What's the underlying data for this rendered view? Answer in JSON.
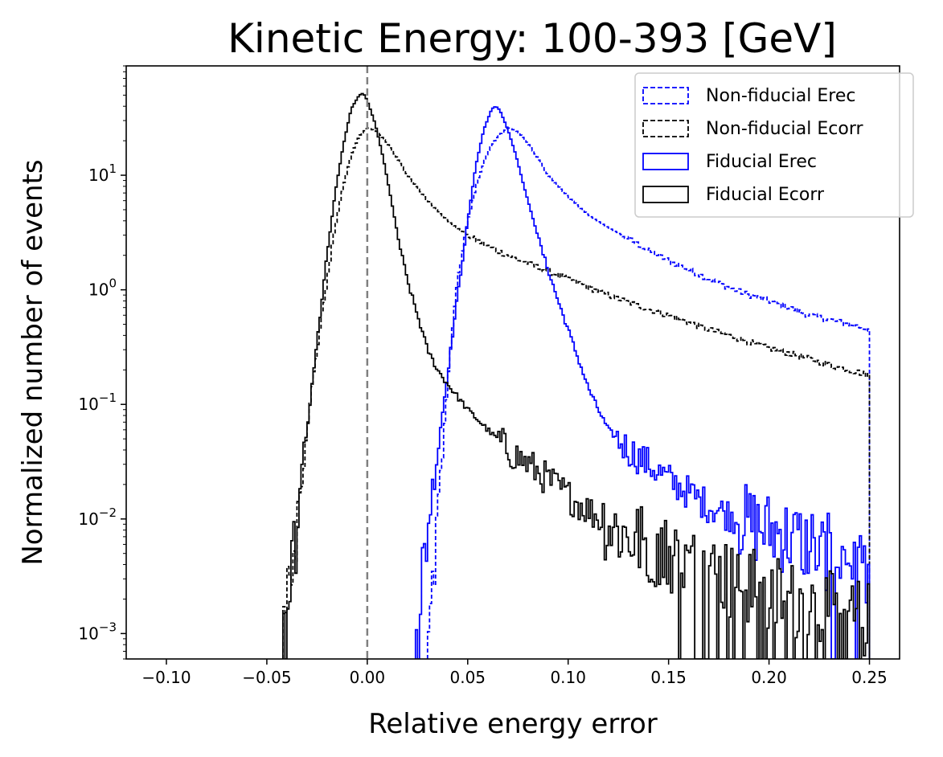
{
  "chart_data": {
    "type": "step-histogram",
    "title": "Kinetic Energy: 100-393 [GeV]",
    "xlabel": "Relative energy error",
    "ylabel": "Normalized number of events",
    "xlim": [
      -0.12,
      0.265
    ],
    "ylim": [
      0.0006,
      90
    ],
    "yscale": "log",
    "xticks": [
      -0.1,
      -0.05,
      0.0,
      0.05,
      0.1,
      0.15,
      0.2,
      0.25
    ],
    "xtick_labels": [
      "−0.10",
      "−0.05",
      "0.00",
      "0.05",
      "0.10",
      "0.15",
      "0.20",
      "0.25"
    ],
    "yticks": [
      0.001,
      0.01,
      0.1,
      1,
      10
    ],
    "ytick_labels": [
      {
        "base": "10",
        "exp": "−3"
      },
      {
        "base": "10",
        "exp": "−2"
      },
      {
        "base": "10",
        "exp": "−1"
      },
      {
        "base": "10",
        "exp": "0"
      },
      {
        "base": "10",
        "exp": "1"
      }
    ],
    "vline": {
      "x": 0.0,
      "color": "#808080",
      "style": "dashed"
    },
    "legend": {
      "location": "top-right"
    },
    "series": [
      {
        "name": "Non-fiducial Erec",
        "color": "#0000ff",
        "style": "dashed",
        "points": [
          [
            0.03,
            0.0006
          ],
          [
            0.032,
            0.002
          ],
          [
            0.035,
            0.01
          ],
          [
            0.038,
            0.05
          ],
          [
            0.04,
            0.15
          ],
          [
            0.042,
            0.4
          ],
          [
            0.045,
            1.2
          ],
          [
            0.05,
            4
          ],
          [
            0.055,
            9
          ],
          [
            0.06,
            16
          ],
          [
            0.065,
            22
          ],
          [
            0.07,
            26
          ],
          [
            0.075,
            24
          ],
          [
            0.08,
            19
          ],
          [
            0.085,
            14
          ],
          [
            0.09,
            10
          ],
          [
            0.1,
            6.5
          ],
          [
            0.11,
            4.5
          ],
          [
            0.12,
            3.5
          ],
          [
            0.13,
            2.8
          ],
          [
            0.14,
            2.2
          ],
          [
            0.15,
            1.8
          ],
          [
            0.16,
            1.5
          ],
          [
            0.17,
            1.25
          ],
          [
            0.18,
            1.05
          ],
          [
            0.19,
            0.9
          ],
          [
            0.2,
            0.8
          ],
          [
            0.21,
            0.7
          ],
          [
            0.22,
            0.6
          ],
          [
            0.23,
            0.55
          ],
          [
            0.24,
            0.5
          ],
          [
            0.25,
            0.45
          ]
        ]
      },
      {
        "name": "Non-fiducial Ecorr",
        "color": "#000000",
        "style": "dashed",
        "points": [
          [
            -0.042,
            0.0006
          ],
          [
            -0.04,
            0.002
          ],
          [
            -0.036,
            0.008
          ],
          [
            -0.032,
            0.03
          ],
          [
            -0.028,
            0.12
          ],
          [
            -0.024,
            0.4
          ],
          [
            -0.02,
            1.2
          ],
          [
            -0.016,
            3.5
          ],
          [
            -0.012,
            8
          ],
          [
            -0.008,
            15
          ],
          [
            -0.004,
            22
          ],
          [
            0.0,
            26
          ],
          [
            0.005,
            24
          ],
          [
            0.01,
            19
          ],
          [
            0.015,
            14
          ],
          [
            0.02,
            10
          ],
          [
            0.03,
            6
          ],
          [
            0.04,
            4
          ],
          [
            0.05,
            3
          ],
          [
            0.06,
            2.4
          ],
          [
            0.07,
            2
          ],
          [
            0.08,
            1.7
          ],
          [
            0.09,
            1.45
          ],
          [
            0.1,
            1.25
          ],
          [
            0.11,
            1.05
          ],
          [
            0.12,
            0.9
          ],
          [
            0.13,
            0.78
          ],
          [
            0.14,
            0.68
          ],
          [
            0.15,
            0.6
          ],
          [
            0.16,
            0.52
          ],
          [
            0.17,
            0.45
          ],
          [
            0.18,
            0.4
          ],
          [
            0.19,
            0.35
          ],
          [
            0.2,
            0.31
          ],
          [
            0.21,
            0.28
          ],
          [
            0.22,
            0.25
          ],
          [
            0.23,
            0.22
          ],
          [
            0.24,
            0.2
          ],
          [
            0.25,
            0.18
          ]
        ]
      },
      {
        "name": "Fiducial Erec",
        "color": "#0000ff",
        "style": "solid",
        "points": [
          [
            0.024,
            0.0006
          ],
          [
            0.026,
            0.002
          ],
          [
            0.03,
            0.008
          ],
          [
            0.034,
            0.03
          ],
          [
            0.038,
            0.1
          ],
          [
            0.042,
            0.35
          ],
          [
            0.046,
            1.2
          ],
          [
            0.05,
            4
          ],
          [
            0.054,
            12
          ],
          [
            0.058,
            25
          ],
          [
            0.062,
            38
          ],
          [
            0.064,
            40
          ],
          [
            0.066,
            37
          ],
          [
            0.07,
            25
          ],
          [
            0.074,
            15
          ],
          [
            0.078,
            8
          ],
          [
            0.082,
            4.5
          ],
          [
            0.086,
            2.5
          ],
          [
            0.09,
            1.5
          ],
          [
            0.095,
            0.8
          ],
          [
            0.1,
            0.45
          ],
          [
            0.105,
            0.25
          ],
          [
            0.11,
            0.14
          ],
          [
            0.115,
            0.09
          ],
          [
            0.12,
            0.06
          ],
          [
            0.13,
            0.04
          ],
          [
            0.14,
            0.03
          ],
          [
            0.15,
            0.022
          ],
          [
            0.16,
            0.017
          ],
          [
            0.17,
            0.013
          ],
          [
            0.18,
            0.011
          ],
          [
            0.19,
            0.009
          ],
          [
            0.2,
            0.008
          ],
          [
            0.21,
            0.007
          ],
          [
            0.22,
            0.006
          ],
          [
            0.23,
            0.005
          ],
          [
            0.24,
            0.0045
          ],
          [
            0.25,
            0.004
          ]
        ]
      },
      {
        "name": "Fiducial Ecorr",
        "color": "#000000",
        "style": "solid",
        "points": [
          [
            -0.042,
            0.0006
          ],
          [
            -0.04,
            0.001
          ],
          [
            -0.036,
            0.006
          ],
          [
            -0.032,
            0.03
          ],
          [
            -0.028,
            0.12
          ],
          [
            -0.024,
            0.5
          ],
          [
            -0.02,
            2
          ],
          [
            -0.016,
            7
          ],
          [
            -0.012,
            18
          ],
          [
            -0.008,
            38
          ],
          [
            -0.004,
            50
          ],
          [
            -0.002,
            52
          ],
          [
            0.0,
            45
          ],
          [
            0.004,
            28
          ],
          [
            0.008,
            14
          ],
          [
            0.012,
            6
          ],
          [
            0.016,
            2.5
          ],
          [
            0.02,
            1.2
          ],
          [
            0.025,
            0.6
          ],
          [
            0.03,
            0.3
          ],
          [
            0.035,
            0.2
          ],
          [
            0.04,
            0.15
          ],
          [
            0.05,
            0.09
          ],
          [
            0.06,
            0.06
          ],
          [
            0.07,
            0.04
          ],
          [
            0.08,
            0.03
          ],
          [
            0.09,
            0.022
          ],
          [
            0.1,
            0.016
          ],
          [
            0.11,
            0.012
          ],
          [
            0.12,
            0.009
          ],
          [
            0.13,
            0.007
          ],
          [
            0.14,
            0.006
          ],
          [
            0.15,
            0.005
          ],
          [
            0.16,
            0.004
          ],
          [
            0.17,
            0.0035
          ],
          [
            0.18,
            0.003
          ],
          [
            0.19,
            0.0026
          ],
          [
            0.2,
            0.0023
          ],
          [
            0.21,
            0.002
          ],
          [
            0.22,
            0.0018
          ],
          [
            0.23,
            0.0016
          ],
          [
            0.24,
            0.0014
          ],
          [
            0.25,
            0.0013
          ]
        ]
      }
    ]
  }
}
